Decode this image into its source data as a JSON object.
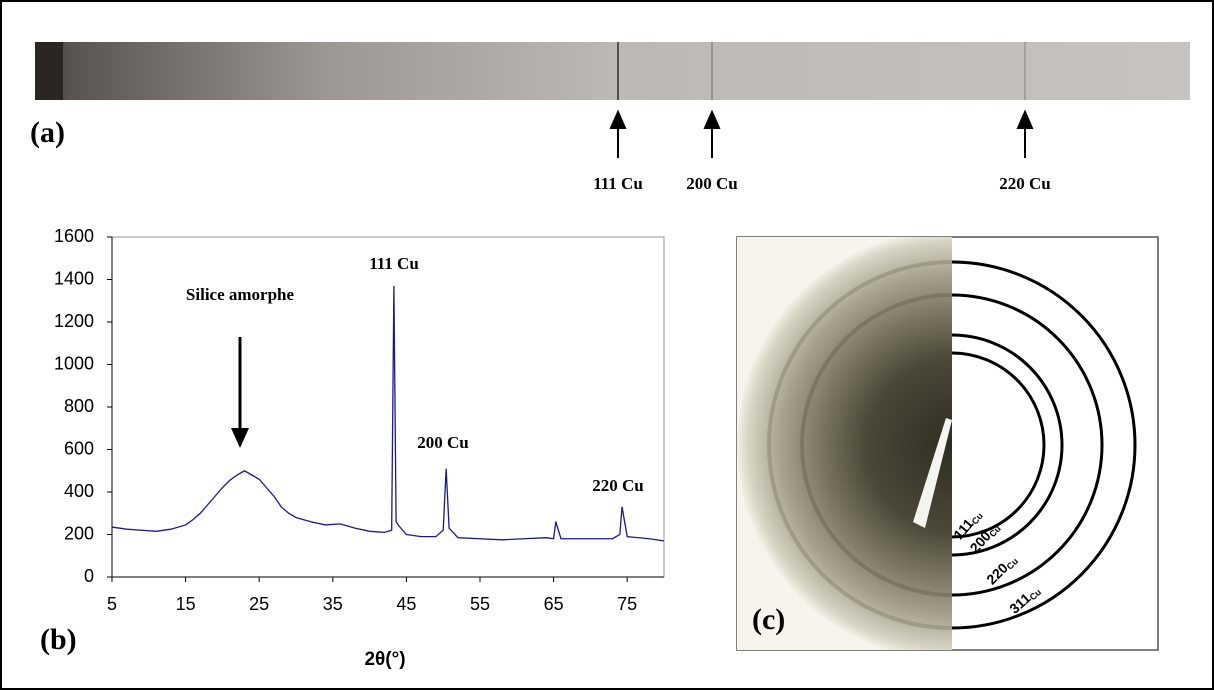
{
  "panel_labels": {
    "a": "(a)",
    "b": "(b)",
    "c": "(c)"
  },
  "panel_a": {
    "peaks": [
      "111 Cu",
      "200 Cu",
      "220 Cu"
    ]
  },
  "panel_c": {
    "rings": [
      {
        "index": "111",
        "sub": "Cu"
      },
      {
        "index": "200",
        "sub": "Cu"
      },
      {
        "index": "220",
        "sub": "Cu"
      },
      {
        "index": "311",
        "sub": "Cu"
      }
    ]
  },
  "chart_data": {
    "type": "line",
    "xlabel": "2θ(°)",
    "annotations": [
      "Silice amorphe",
      "111 Cu",
      "200 Cu",
      "220 Cu"
    ],
    "xlim": [
      5,
      80
    ],
    "xticks": [
      5,
      15,
      25,
      35,
      45,
      55,
      65,
      75
    ],
    "ylim": [
      0,
      1600
    ],
    "yticks": [
      0,
      200,
      400,
      600,
      800,
      1000,
      1200,
      1400,
      1600
    ],
    "series": [
      {
        "color": "#1a1a8c",
        "x": [
          5,
          7,
          9,
          11,
          13,
          15,
          16,
          17,
          18,
          19,
          20,
          21,
          22,
          23,
          24,
          25,
          26,
          27,
          28,
          29,
          30,
          32,
          34,
          36,
          38,
          40,
          42,
          43,
          43.3,
          43.6,
          44,
          45,
          47,
          49,
          50,
          50.4,
          50.8,
          52,
          55,
          58,
          61,
          64,
          65,
          65.3,
          66,
          70,
          73,
          74,
          74.3,
          75,
          78,
          80
        ],
        "values": [
          235,
          225,
          220,
          215,
          225,
          245,
          270,
          300,
          340,
          380,
          420,
          455,
          480,
          500,
          480,
          460,
          420,
          380,
          330,
          300,
          280,
          260,
          245,
          250,
          230,
          215,
          210,
          220,
          1370,
          260,
          240,
          200,
          190,
          190,
          220,
          510,
          230,
          185,
          180,
          175,
          180,
          185,
          180,
          260,
          180,
          180,
          180,
          200,
          330,
          190,
          180,
          170
        ]
      }
    ]
  }
}
